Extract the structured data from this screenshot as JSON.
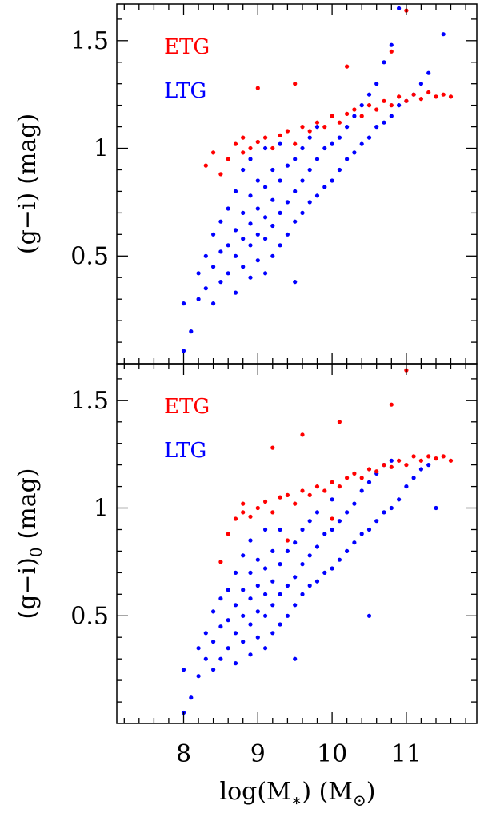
{
  "chart_data": [
    {
      "type": "scatter",
      "panel": "top",
      "ylabel_main": "(g−i)",
      "ylabel_sub": "",
      "ylabel_unit": "(mag)",
      "xlim": [
        7.1,
        11.95
      ],
      "ylim": [
        0.0,
        1.67
      ],
      "yticks": [
        {
          "value": 0.5,
          "label": "0.5"
        },
        {
          "value": 1.0,
          "label": "1"
        },
        {
          "value": 1.5,
          "label": "1.5"
        }
      ],
      "legend": [
        {
          "name": "ETG",
          "color": "#ff0000"
        },
        {
          "name": "LTG",
          "color": "#0000ff"
        }
      ],
      "legend_position": "top-left",
      "series": [
        {
          "name": "LTG",
          "color": "#0000ff",
          "points": [
            [
              8.0,
              0.06
            ],
            [
              8.1,
              0.15
            ],
            [
              8.0,
              0.28
            ],
            [
              8.2,
              0.3
            ],
            [
              8.2,
              0.42
            ],
            [
              8.3,
              0.35
            ],
            [
              8.3,
              0.5
            ],
            [
              8.4,
              0.28
            ],
            [
              8.4,
              0.45
            ],
            [
              8.4,
              0.6
            ],
            [
              8.5,
              0.38
            ],
            [
              8.5,
              0.52
            ],
            [
              8.5,
              0.66
            ],
            [
              8.6,
              0.42
            ],
            [
              8.6,
              0.55
            ],
            [
              8.6,
              0.72
            ],
            [
              8.7,
              0.33
            ],
            [
              8.7,
              0.5
            ],
            [
              8.7,
              0.62
            ],
            [
              8.7,
              0.8
            ],
            [
              8.8,
              0.45
            ],
            [
              8.8,
              0.58
            ],
            [
              8.8,
              0.7
            ],
            [
              8.8,
              0.9
            ],
            [
              8.9,
              0.4
            ],
            [
              8.9,
              0.55
            ],
            [
              8.9,
              0.65
            ],
            [
              8.9,
              0.78
            ],
            [
              8.9,
              0.95
            ],
            [
              9.0,
              0.48
            ],
            [
              9.0,
              0.6
            ],
            [
              9.0,
              0.72
            ],
            [
              9.0,
              0.85
            ],
            [
              9.1,
              0.42
            ],
            [
              9.1,
              0.58
            ],
            [
              9.1,
              0.68
            ],
            [
              9.1,
              0.82
            ],
            [
              9.1,
              1.0
            ],
            [
              9.2,
              0.5
            ],
            [
              9.2,
              0.64
            ],
            [
              9.2,
              0.76
            ],
            [
              9.2,
              0.9
            ],
            [
              9.3,
              0.55
            ],
            [
              9.3,
              0.7
            ],
            [
              9.3,
              0.85
            ],
            [
              9.3,
              1.02
            ],
            [
              9.4,
              0.6
            ],
            [
              9.4,
              0.75
            ],
            [
              9.4,
              0.92
            ],
            [
              9.5,
              0.38
            ],
            [
              9.5,
              0.66
            ],
            [
              9.5,
              0.8
            ],
            [
              9.5,
              0.95
            ],
            [
              9.6,
              0.7
            ],
            [
              9.6,
              0.85
            ],
            [
              9.6,
              1.0
            ],
            [
              9.7,
              0.75
            ],
            [
              9.7,
              0.9
            ],
            [
              9.7,
              1.05
            ],
            [
              9.8,
              0.78
            ],
            [
              9.8,
              0.95
            ],
            [
              9.8,
              1.1
            ],
            [
              9.9,
              0.82
            ],
            [
              9.9,
              1.0
            ],
            [
              10.0,
              0.85
            ],
            [
              10.0,
              1.02
            ],
            [
              10.0,
              1.15
            ],
            [
              10.1,
              0.9
            ],
            [
              10.1,
              1.05
            ],
            [
              10.2,
              0.95
            ],
            [
              10.2,
              1.1
            ],
            [
              10.3,
              0.98
            ],
            [
              10.3,
              1.15
            ],
            [
              10.4,
              1.02
            ],
            [
              10.4,
              1.2
            ],
            [
              10.5,
              1.05
            ],
            [
              10.5,
              1.25
            ],
            [
              10.6,
              1.1
            ],
            [
              10.6,
              1.3
            ],
            [
              10.7,
              1.12
            ],
            [
              10.7,
              1.4
            ],
            [
              10.8,
              1.15
            ],
            [
              10.8,
              1.48
            ],
            [
              10.9,
              1.2
            ],
            [
              11.0,
              1.22
            ],
            [
              11.1,
              1.25
            ],
            [
              11.2,
              1.3
            ],
            [
              11.3,
              1.35
            ],
            [
              11.5,
              1.53
            ],
            [
              10.9,
              1.65
            ]
          ]
        },
        {
          "name": "ETG",
          "color": "#ff0000",
          "points": [
            [
              8.3,
              0.92
            ],
            [
              8.4,
              0.98
            ],
            [
              8.5,
              0.88
            ],
            [
              8.6,
              0.95
            ],
            [
              8.7,
              1.02
            ],
            [
              8.8,
              0.98
            ],
            [
              8.8,
              1.05
            ],
            [
              8.9,
              1.0
            ],
            [
              9.0,
              1.03
            ],
            [
              9.1,
              1.05
            ],
            [
              9.2,
              1.0
            ],
            [
              9.3,
              1.06
            ],
            [
              9.4,
              1.08
            ],
            [
              9.5,
              1.02
            ],
            [
              9.6,
              1.1
            ],
            [
              9.7,
              1.08
            ],
            [
              9.8,
              1.12
            ],
            [
              9.9,
              1.1
            ],
            [
              10.0,
              1.15
            ],
            [
              10.1,
              1.12
            ],
            [
              10.2,
              1.16
            ],
            [
              10.3,
              1.18
            ],
            [
              10.4,
              1.15
            ],
            [
              10.5,
              1.2
            ],
            [
              10.6,
              1.18
            ],
            [
              10.7,
              1.22
            ],
            [
              10.8,
              1.2
            ],
            [
              10.9,
              1.24
            ],
            [
              11.0,
              1.22
            ],
            [
              11.1,
              1.25
            ],
            [
              11.2,
              1.23
            ],
            [
              11.3,
              1.26
            ],
            [
              11.4,
              1.24
            ],
            [
              11.5,
              1.25
            ],
            [
              11.6,
              1.24
            ],
            [
              9.0,
              1.28
            ],
            [
              9.5,
              1.3
            ],
            [
              10.2,
              1.38
            ],
            [
              10.8,
              1.45
            ],
            [
              11.0,
              1.64
            ]
          ]
        }
      ]
    },
    {
      "type": "scatter",
      "panel": "bottom",
      "ylabel_main": "(g−i)",
      "ylabel_sub": "0",
      "ylabel_unit": "(mag)",
      "xlabel_main": "log(M",
      "xlabel_sub1": "∗",
      "xlabel_mid": ")  (M",
      "xlabel_sub2": "⊙",
      "xlabel_end": ")",
      "xlim": [
        7.1,
        11.95
      ],
      "ylim": [
        0.0,
        1.67
      ],
      "xticks": [
        {
          "value": 8,
          "label": "8"
        },
        {
          "value": 9,
          "label": "9"
        },
        {
          "value": 10,
          "label": "10"
        },
        {
          "value": 11,
          "label": "11"
        }
      ],
      "yticks": [
        {
          "value": 0.5,
          "label": "0.5"
        },
        {
          "value": 1.0,
          "label": "1"
        },
        {
          "value": 1.5,
          "label": "1.5"
        }
      ],
      "legend": [
        {
          "name": "ETG",
          "color": "#ff0000"
        },
        {
          "name": "LTG",
          "color": "#0000ff"
        }
      ],
      "legend_position": "top-left",
      "series": [
        {
          "name": "LTG",
          "color": "#0000ff",
          "points": [
            [
              8.0,
              0.05
            ],
            [
              8.1,
              0.12
            ],
            [
              8.0,
              0.25
            ],
            [
              8.2,
              0.22
            ],
            [
              8.2,
              0.35
            ],
            [
              8.3,
              0.3
            ],
            [
              8.3,
              0.42
            ],
            [
              8.4,
              0.25
            ],
            [
              8.4,
              0.38
            ],
            [
              8.4,
              0.52
            ],
            [
              8.5,
              0.3
            ],
            [
              8.5,
              0.45
            ],
            [
              8.5,
              0.58
            ],
            [
              8.6,
              0.35
            ],
            [
              8.6,
              0.48
            ],
            [
              8.6,
              0.62
            ],
            [
              8.7,
              0.28
            ],
            [
              8.7,
              0.42
            ],
            [
              8.7,
              0.55
            ],
            [
              8.7,
              0.7
            ],
            [
              8.8,
              0.38
            ],
            [
              8.8,
              0.5
            ],
            [
              8.8,
              0.62
            ],
            [
              8.8,
              0.78
            ],
            [
              8.9,
              0.32
            ],
            [
              8.9,
              0.46
            ],
            [
              8.9,
              0.58
            ],
            [
              8.9,
              0.7
            ],
            [
              8.9,
              0.85
            ],
            [
              9.0,
              0.4
            ],
            [
              9.0,
              0.52
            ],
            [
              9.0,
              0.64
            ],
            [
              9.0,
              0.76
            ],
            [
              9.1,
              0.35
            ],
            [
              9.1,
              0.5
            ],
            [
              9.1,
              0.6
            ],
            [
              9.1,
              0.72
            ],
            [
              9.1,
              0.9
            ],
            [
              9.2,
              0.42
            ],
            [
              9.2,
              0.55
            ],
            [
              9.2,
              0.66
            ],
            [
              9.2,
              0.8
            ],
            [
              9.3,
              0.46
            ],
            [
              9.3,
              0.6
            ],
            [
              9.3,
              0.74
            ],
            [
              9.3,
              0.9
            ],
            [
              9.4,
              0.5
            ],
            [
              9.4,
              0.64
            ],
            [
              9.4,
              0.8
            ],
            [
              9.5,
              0.3
            ],
            [
              9.5,
              0.55
            ],
            [
              9.5,
              0.68
            ],
            [
              9.5,
              0.84
            ],
            [
              9.6,
              0.6
            ],
            [
              9.6,
              0.74
            ],
            [
              9.6,
              0.9
            ],
            [
              9.7,
              0.64
            ],
            [
              9.7,
              0.78
            ],
            [
              9.7,
              0.94
            ],
            [
              9.8,
              0.66
            ],
            [
              9.8,
              0.82
            ],
            [
              9.8,
              0.98
            ],
            [
              9.9,
              0.7
            ],
            [
              9.9,
              0.88
            ],
            [
              10.0,
              0.72
            ],
            [
              10.0,
              0.9
            ],
            [
              10.0,
              1.04
            ],
            [
              10.1,
              0.76
            ],
            [
              10.1,
              0.94
            ],
            [
              10.2,
              0.8
            ],
            [
              10.2,
              0.98
            ],
            [
              10.3,
              0.84
            ],
            [
              10.3,
              1.02
            ],
            [
              10.4,
              0.88
            ],
            [
              10.4,
              1.08
            ],
            [
              10.5,
              0.9
            ],
            [
              10.5,
              1.12
            ],
            [
              10.6,
              0.94
            ],
            [
              10.6,
              1.16
            ],
            [
              10.7,
              0.98
            ],
            [
              10.7,
              1.2
            ],
            [
              10.8,
              1.0
            ],
            [
              10.8,
              1.22
            ],
            [
              10.9,
              1.04
            ],
            [
              11.0,
              1.1
            ],
            [
              11.1,
              1.14
            ],
            [
              11.2,
              1.18
            ],
            [
              11.3,
              1.2
            ],
            [
              11.4,
              1.0
            ],
            [
              10.5,
              0.5
            ]
          ]
        },
        {
          "name": "ETG",
          "color": "#ff0000",
          "points": [
            [
              8.5,
              0.75
            ],
            [
              8.6,
              0.88
            ],
            [
              8.7,
              0.95
            ],
            [
              8.8,
              0.98
            ],
            [
              8.8,
              1.02
            ],
            [
              8.9,
              0.96
            ],
            [
              9.0,
              1.0
            ],
            [
              9.1,
              1.03
            ],
            [
              9.2,
              0.98
            ],
            [
              9.3,
              1.05
            ],
            [
              9.4,
              1.06
            ],
            [
              9.5,
              1.02
            ],
            [
              9.6,
              1.08
            ],
            [
              9.7,
              1.06
            ],
            [
              9.8,
              1.1
            ],
            [
              9.9,
              1.08
            ],
            [
              10.0,
              1.12
            ],
            [
              10.1,
              1.1
            ],
            [
              10.2,
              1.14
            ],
            [
              10.3,
              1.16
            ],
            [
              10.4,
              1.14
            ],
            [
              10.5,
              1.18
            ],
            [
              10.6,
              1.17
            ],
            [
              10.7,
              1.2
            ],
            [
              10.8,
              1.19
            ],
            [
              10.9,
              1.22
            ],
            [
              11.0,
              1.2
            ],
            [
              11.1,
              1.24
            ],
            [
              11.2,
              1.22
            ],
            [
              11.3,
              1.24
            ],
            [
              11.4,
              1.23
            ],
            [
              11.5,
              1.24
            ],
            [
              11.6,
              1.22
            ],
            [
              9.2,
              1.28
            ],
            [
              9.6,
              1.34
            ],
            [
              10.1,
              1.4
            ],
            [
              10.8,
              1.48
            ],
            [
              11.0,
              1.64
            ],
            [
              9.4,
              0.85
            ],
            [
              10.0,
              0.95
            ]
          ]
        }
      ]
    }
  ]
}
